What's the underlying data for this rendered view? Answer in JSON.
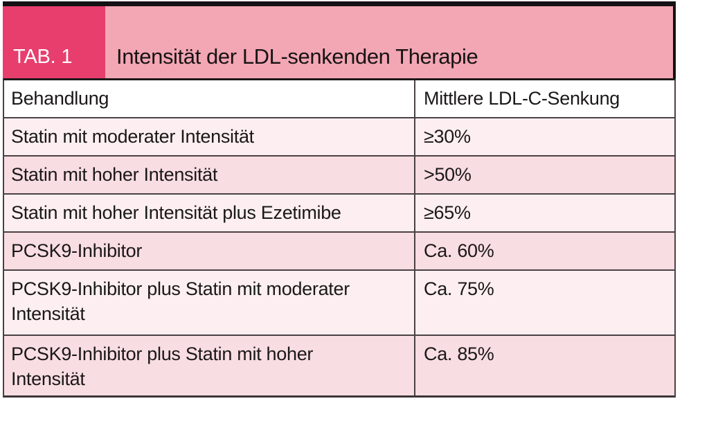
{
  "figure": {
    "tab_label": "TAB. 1",
    "title": "Intensität der LDL-senkenden Therapie"
  },
  "table": {
    "columns": {
      "treatment": "Behandlung",
      "reduction": "Mittlere LDL-C-Senkung"
    },
    "rows": [
      {
        "behandlung": "Statin mit moderater Intensität",
        "senkung": "≥30%"
      },
      {
        "behandlung": "Statin mit hoher Intensität",
        "senkung": ">50%"
      },
      {
        "behandlung": "Statin mit hoher Intensität plus Ezetimibe",
        "senkung": "≥65%"
      },
      {
        "behandlung": "PCSK9-Inhibitor",
        "senkung": "Ca. 60%"
      },
      {
        "behandlung": "PCSK9-Inhibitor plus Statin mit moderater\nIntensität",
        "senkung": "Ca. 75%"
      },
      {
        "behandlung": "PCSK9-Inhibitor plus Statin mit hoher\nIntensität",
        "senkung": "Ca. 85%"
      }
    ]
  },
  "colors": {
    "tab_box": "#e73e6e",
    "title_bar": "#f3a6b4",
    "row_light": "#fdeff1",
    "row_shaded": "#f8dde2",
    "grid_line": "#4a4145",
    "top_bar": "#141114",
    "text": "#1b1818",
    "tab_text": "#ffffff"
  },
  "chart_data": {
    "type": "table",
    "title": "Intensität der LDL-senkenden Therapie",
    "table_number": "TAB. 1",
    "columns": [
      "Behandlung",
      "Mittlere LDL-C-Senkung"
    ],
    "rows": [
      [
        "Statin mit moderater Intensität",
        "≥30%"
      ],
      [
        "Statin mit hoher Intensität",
        ">50%"
      ],
      [
        "Statin mit hoher Intensität plus Ezetimibe",
        "≥65%"
      ],
      [
        "PCSK9-Inhibitor",
        "Ca. 60%"
      ],
      [
        "PCSK9-Inhibitor plus Statin mit moderater Intensität",
        "Ca. 75%"
      ],
      [
        "PCSK9-Inhibitor plus Statin mit hoher Intensität",
        "Ca. 85%"
      ]
    ],
    "reduction_values_pct": [
      30,
      50,
      65,
      60,
      75,
      85
    ],
    "reduction_qualifiers": [
      "≥",
      ">",
      "≥",
      "ca.",
      "ca.",
      "ca."
    ]
  }
}
